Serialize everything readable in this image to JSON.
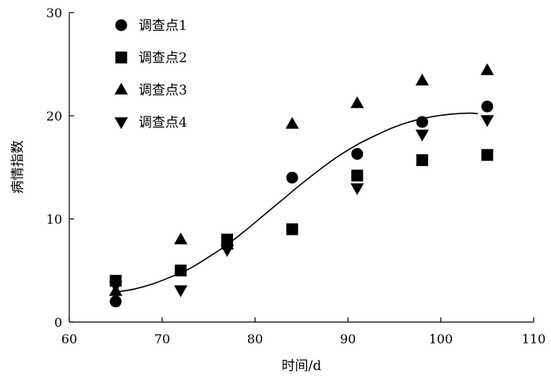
{
  "chart_data": {
    "type": "scatter",
    "title": "",
    "xlabel": "时间/d",
    "ylabel": "病情指数",
    "xlim": [
      60,
      110
    ],
    "ylim": [
      0,
      30
    ],
    "x_ticks": [
      60,
      70,
      80,
      90,
      100,
      110
    ],
    "y_ticks": [
      0,
      10,
      20,
      30
    ],
    "grid": false,
    "legend_position": "top-left",
    "series": [
      {
        "name": "调查点1",
        "marker": "circle",
        "color": "#000000",
        "points": [
          {
            "x": 65,
            "y": 2.0
          },
          {
            "x": 72,
            "y": 5.0
          },
          {
            "x": 77,
            "y": 7.5
          },
          {
            "x": 84,
            "y": 14.0
          },
          {
            "x": 91,
            "y": 16.3
          },
          {
            "x": 98,
            "y": 19.4
          },
          {
            "x": 105,
            "y": 20.9
          }
        ]
      },
      {
        "name": "调查点2",
        "marker": "square",
        "color": "#000000",
        "points": [
          {
            "x": 65,
            "y": 4.0
          },
          {
            "x": 72,
            "y": 5.0
          },
          {
            "x": 77,
            "y": 8.0
          },
          {
            "x": 84,
            "y": 9.0
          },
          {
            "x": 91,
            "y": 14.2
          },
          {
            "x": 98,
            "y": 15.7
          },
          {
            "x": 105,
            "y": 16.2
          }
        ]
      },
      {
        "name": "调查点3",
        "marker": "triangle-up",
        "color": "#000000",
        "points": [
          {
            "x": 65,
            "y": 3.0
          },
          {
            "x": 72,
            "y": 8.0
          },
          {
            "x": 77,
            "y": 7.5
          },
          {
            "x": 84,
            "y": 19.2
          },
          {
            "x": 91,
            "y": 21.2
          },
          {
            "x": 98,
            "y": 23.4
          },
          {
            "x": 105,
            "y": 24.4
          }
        ]
      },
      {
        "name": "调查点4",
        "marker": "triangle-down",
        "color": "#000000",
        "points": [
          {
            "x": 65,
            "y": 3.5
          },
          {
            "x": 72,
            "y": 3.1
          },
          {
            "x": 77,
            "y": 7.0
          },
          {
            "x": 91,
            "y": 13.0
          },
          {
            "x": 98,
            "y": 18.2
          },
          {
            "x": 105,
            "y": 19.6
          }
        ]
      }
    ],
    "fitted_curve": {
      "color": "#000000",
      "points": [
        {
          "x": 65,
          "y": 2.9
        },
        {
          "x": 67,
          "y": 3.2
        },
        {
          "x": 69,
          "y": 3.7
        },
        {
          "x": 71,
          "y": 4.4
        },
        {
          "x": 73,
          "y": 5.2
        },
        {
          "x": 75,
          "y": 6.3
        },
        {
          "x": 77,
          "y": 7.5
        },
        {
          "x": 79,
          "y": 8.9
        },
        {
          "x": 81,
          "y": 10.4
        },
        {
          "x": 83,
          "y": 11.9
        },
        {
          "x": 85,
          "y": 13.4
        },
        {
          "x": 87,
          "y": 14.8
        },
        {
          "x": 89,
          "y": 16.1
        },
        {
          "x": 91,
          "y": 17.2
        },
        {
          "x": 93,
          "y": 18.1
        },
        {
          "x": 95,
          "y": 18.9
        },
        {
          "x": 97,
          "y": 19.5
        },
        {
          "x": 99,
          "y": 19.9
        },
        {
          "x": 101,
          "y": 20.15
        },
        {
          "x": 103,
          "y": 20.25
        },
        {
          "x": 104,
          "y": 20.2
        }
      ]
    }
  }
}
